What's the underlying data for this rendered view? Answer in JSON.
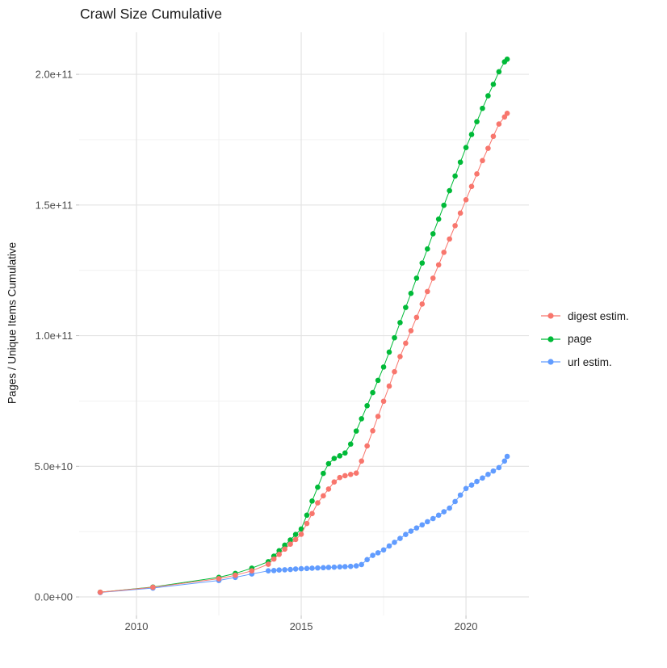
{
  "chart_data": {
    "type": "scatter",
    "title": "Crawl Size Cumulative",
    "xlabel": "",
    "ylabel": "Pages / Unique Items Cumulative",
    "grid": true,
    "legend_position": "right",
    "xlim": [
      2008.26,
      2021.91
    ],
    "ylim": [
      -7100000000.0,
      216100000000.0
    ],
    "x_ticks": [
      {
        "value": 2010,
        "label": "2010"
      },
      {
        "value": 2015,
        "label": "2015"
      },
      {
        "value": 2020,
        "label": "2020"
      }
    ],
    "x_minor_ticks": [
      2012.5,
      2017.5
    ],
    "y_ticks": [
      {
        "value": 0,
        "label": "0.0e+00"
      },
      {
        "value": 50000000000.0,
        "label": "5.0e+10"
      },
      {
        "value": 100000000000.0,
        "label": "1.0e+11"
      },
      {
        "value": 150000000000.0,
        "label": "1.5e+11"
      },
      {
        "value": 200000000000.0,
        "label": "2.0e+11"
      }
    ],
    "y_minor_ticks": [
      25000000000.0,
      75000000000.0,
      125000000000.0,
      175000000000.0
    ],
    "grid_major_color": "#e3e3e3",
    "grid_minor_color": "#f0f0f0",
    "axis_text_color": "#4d4d4d",
    "series": [
      {
        "name": "digest estim.",
        "color": "#F8766D",
        "points": [
          [
            2008.9,
            1800000000.0
          ],
          [
            2010.5,
            3700000000.0
          ],
          [
            2012.5,
            7000000000.0
          ],
          [
            2013.0,
            8300000000.0
          ],
          [
            2013.5,
            10000000000.0
          ],
          [
            2014.0,
            12500000000.0
          ],
          [
            2014.17,
            14500000000.0
          ],
          [
            2014.33,
            16300000000.0
          ],
          [
            2014.5,
            18300000000.0
          ],
          [
            2014.67,
            20200000000.0
          ],
          [
            2014.83,
            22000000000.0
          ],
          [
            2015.0,
            24000000000.0
          ],
          [
            2015.17,
            28100000000.0
          ],
          [
            2015.33,
            31900000000.0
          ],
          [
            2015.5,
            36000000000.0
          ],
          [
            2015.67,
            38700000000.0
          ],
          [
            2015.83,
            41300000000.0
          ],
          [
            2016.0,
            44000000000.0
          ],
          [
            2016.17,
            45700000000.0
          ],
          [
            2016.33,
            46400000000.0
          ],
          [
            2016.5,
            46900000000.0
          ],
          [
            2016.67,
            47400000000.0
          ],
          [
            2016.83,
            52000000000.0
          ],
          [
            2017.0,
            57800000000.0
          ],
          [
            2017.17,
            63600000000.0
          ],
          [
            2017.33,
            69100000000.0
          ],
          [
            2017.5,
            74900000000.0
          ],
          [
            2017.67,
            80700000000.0
          ],
          [
            2017.83,
            86200000000.0
          ],
          [
            2018.0,
            92000000000.0
          ],
          [
            2018.17,
            97100000000.0
          ],
          [
            2018.33,
            101900000000.0
          ],
          [
            2018.5,
            107000000000.0
          ],
          [
            2018.67,
            112100000000.0
          ],
          [
            2018.83,
            116900000000.0
          ],
          [
            2019.0,
            122000000000.0
          ],
          [
            2019.17,
            127100000000.0
          ],
          [
            2019.33,
            131900000000.0
          ],
          [
            2019.5,
            137000000000.0
          ],
          [
            2019.67,
            142100000000.0
          ],
          [
            2019.83,
            146900000000.0
          ],
          [
            2020.0,
            152000000000.0
          ],
          [
            2020.17,
            157100000000.0
          ],
          [
            2020.33,
            161900000000.0
          ],
          [
            2020.5,
            167000000000.0
          ],
          [
            2020.67,
            171700000000.0
          ],
          [
            2020.83,
            176300000000.0
          ],
          [
            2021.0,
            181000000000.0
          ],
          [
            2021.17,
            183700000000.0
          ],
          [
            2021.25,
            185100000000.0
          ]
        ]
      },
      {
        "name": "page",
        "color": "#00BA38",
        "points": [
          [
            2008.9,
            1800000000.0
          ],
          [
            2010.5,
            3800000000.0
          ],
          [
            2012.5,
            7500000000.0
          ],
          [
            2013.0,
            9000000000.0
          ],
          [
            2013.5,
            11000000000.0
          ],
          [
            2014.0,
            13500000000.0
          ],
          [
            2014.17,
            15600000000.0
          ],
          [
            2014.33,
            17700000000.0
          ],
          [
            2014.5,
            19800000000.0
          ],
          [
            2014.67,
            21800000000.0
          ],
          [
            2014.83,
            23900000000.0
          ],
          [
            2015.0,
            26000000000.0
          ],
          [
            2015.17,
            31300000000.0
          ],
          [
            2015.33,
            36700000000.0
          ],
          [
            2015.5,
            42000000000.0
          ],
          [
            2015.67,
            47300000000.0
          ],
          [
            2015.83,
            51000000000.0
          ],
          [
            2016.0,
            53000000000.0
          ],
          [
            2016.17,
            54000000000.0
          ],
          [
            2016.33,
            55100000000.0
          ],
          [
            2016.5,
            58500000000.0
          ],
          [
            2016.67,
            63500000000.0
          ],
          [
            2016.83,
            68200000000.0
          ],
          [
            2017.0,
            73200000000.0
          ],
          [
            2017.17,
            78200000000.0
          ],
          [
            2017.33,
            82900000000.0
          ],
          [
            2017.5,
            88000000000.0
          ],
          [
            2017.67,
            93700000000.0
          ],
          [
            2017.83,
            99200000000.0
          ],
          [
            2018.0,
            105000000000.0
          ],
          [
            2018.17,
            110800000000.0
          ],
          [
            2018.33,
            116200000000.0
          ],
          [
            2018.5,
            122000000000.0
          ],
          [
            2018.67,
            127800000000.0
          ],
          [
            2018.83,
            133200000000.0
          ],
          [
            2019.0,
            139000000000.0
          ],
          [
            2019.17,
            144600000000.0
          ],
          [
            2019.33,
            149900000000.0
          ],
          [
            2019.5,
            155500000000.0
          ],
          [
            2019.67,
            161100000000.0
          ],
          [
            2019.83,
            166400000000.0
          ],
          [
            2020.0,
            172000000000.0
          ],
          [
            2020.17,
            177000000000.0
          ],
          [
            2020.33,
            181900000000.0
          ],
          [
            2020.5,
            187000000000.0
          ],
          [
            2020.67,
            191800000000.0
          ],
          [
            2020.83,
            196200000000.0
          ],
          [
            2021.0,
            201000000000.0
          ],
          [
            2021.17,
            204800000000.0
          ],
          [
            2021.25,
            205800000000.0
          ]
        ]
      },
      {
        "name": "url estim.",
        "color": "#619CFF",
        "points": [
          [
            2008.9,
            1700000000.0
          ],
          [
            2010.5,
            3400000000.0
          ],
          [
            2012.5,
            6300000000.0
          ],
          [
            2013.0,
            7500000000.0
          ],
          [
            2013.5,
            8800000000.0
          ],
          [
            2014.0,
            10000000000.0
          ],
          [
            2014.17,
            10100000000.0
          ],
          [
            2014.33,
            10300000000.0
          ],
          [
            2014.5,
            10400000000.0
          ],
          [
            2014.67,
            10500000000.0
          ],
          [
            2014.83,
            10700000000.0
          ],
          [
            2015.0,
            10800000000.0
          ],
          [
            2015.17,
            10900000000.0
          ],
          [
            2015.33,
            11000000000.0
          ],
          [
            2015.5,
            11100000000.0
          ],
          [
            2015.67,
            11200000000.0
          ],
          [
            2015.83,
            11300000000.0
          ],
          [
            2016.0,
            11400000000.0
          ],
          [
            2016.17,
            11500000000.0
          ],
          [
            2016.33,
            11600000000.0
          ],
          [
            2016.5,
            11700000000.0
          ],
          [
            2016.67,
            11900000000.0
          ],
          [
            2016.83,
            12400000000.0
          ],
          [
            2017.0,
            14300000000.0
          ],
          [
            2017.17,
            15900000000.0
          ],
          [
            2017.33,
            16900000000.0
          ],
          [
            2017.5,
            18000000000.0
          ],
          [
            2017.67,
            19500000000.0
          ],
          [
            2017.83,
            20900000000.0
          ],
          [
            2018.0,
            22400000000.0
          ],
          [
            2018.17,
            23900000000.0
          ],
          [
            2018.33,
            25200000000.0
          ],
          [
            2018.5,
            26400000000.0
          ],
          [
            2018.67,
            27600000000.0
          ],
          [
            2018.83,
            28800000000.0
          ],
          [
            2019.0,
            30000000000.0
          ],
          [
            2019.17,
            31300000000.0
          ],
          [
            2019.33,
            32600000000.0
          ],
          [
            2019.5,
            34000000000.0
          ],
          [
            2019.67,
            36500000000.0
          ],
          [
            2019.83,
            39000000000.0
          ],
          [
            2020.0,
            41500000000.0
          ],
          [
            2020.17,
            42800000000.0
          ],
          [
            2020.33,
            44200000000.0
          ],
          [
            2020.5,
            45500000000.0
          ],
          [
            2020.67,
            46900000000.0
          ],
          [
            2020.83,
            48200000000.0
          ],
          [
            2021.0,
            49500000000.0
          ],
          [
            2021.17,
            52000000000.0
          ],
          [
            2021.25,
            53800000000.0
          ]
        ]
      }
    ]
  }
}
